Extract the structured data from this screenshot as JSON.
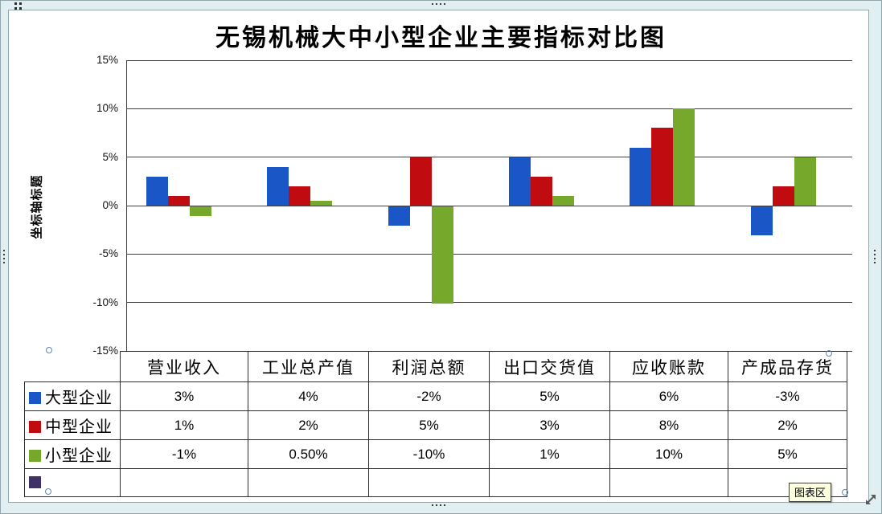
{
  "title": "无锡机械大中小型企业主要指标对比图",
  "y_axis_title": "坐标轴标题",
  "status": {
    "chart_area_tooltip": "图表区"
  },
  "chart_data": {
    "type": "bar",
    "title": "无锡机械大中小型企业主要指标对比图",
    "xlabel": "",
    "ylabel": "坐标轴标题",
    "categories": [
      "营业收入",
      "工业总产值",
      "利润总额",
      "出口交货值",
      "应收账款",
      "产成品存货"
    ],
    "series": [
      {
        "name": "大型企业",
        "color": "#1a56c5",
        "values": [
          3,
          4,
          -2,
          5,
          6,
          -3
        ]
      },
      {
        "name": "中型企业",
        "color": "#c00b11",
        "values": [
          1,
          2,
          5,
          3,
          8,
          2
        ]
      },
      {
        "name": "小型企业",
        "color": "#75a82b",
        "values": [
          -1,
          0.5,
          -10,
          1,
          10,
          5
        ]
      }
    ],
    "ylim": [
      -15,
      15
    ],
    "ytick_step": 5,
    "ytick_labels": [
      "15%",
      "10%",
      "5%",
      "0%",
      "-5%",
      "-10%",
      "-15%"
    ],
    "grid": true,
    "legend_position": "data-table-left"
  },
  "table": {
    "headers": [
      "营业收入",
      "工业总产值",
      "利润总额",
      "出口交货值",
      "应收账款",
      "产成品存货"
    ],
    "rows": [
      {
        "label": "大型企业",
        "swatch": "#1a56c5",
        "values": [
          "3%",
          "4%",
          "-2%",
          "5%",
          "6%",
          "-3%"
        ]
      },
      {
        "label": "中型企业",
        "swatch": "#c00b11",
        "values": [
          "1%",
          "2%",
          "5%",
          "3%",
          "8%",
          "2%"
        ]
      },
      {
        "label": "小型企业",
        "swatch": "#75a82b",
        "values": [
          "-1%",
          "0.50%",
          "-10%",
          "1%",
          "10%",
          "5%"
        ]
      },
      {
        "label": "",
        "swatch": "#3f3166",
        "values": [
          "",
          "",
          "",
          "",
          "",
          ""
        ]
      }
    ]
  }
}
